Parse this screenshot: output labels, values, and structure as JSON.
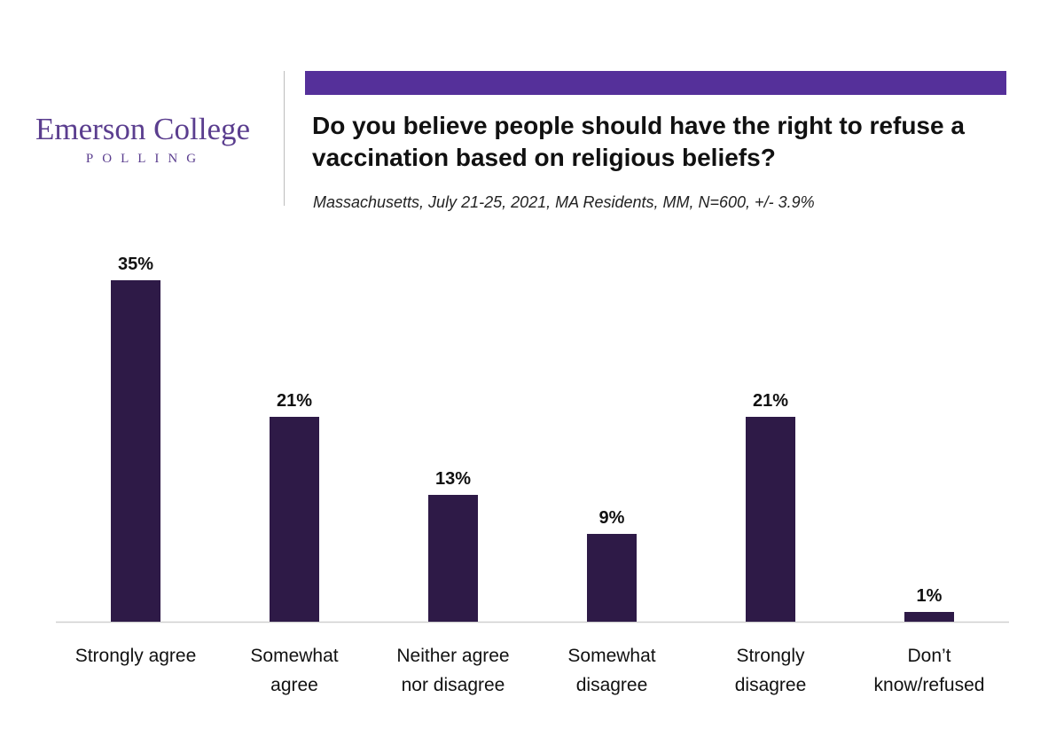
{
  "logo": {
    "name": "Emerson College",
    "sub": "POLLING"
  },
  "colors": {
    "accent": "#55309a",
    "bar": "#2e1a47",
    "axis": "#d0d0d0"
  },
  "chart_data": {
    "type": "bar",
    "title": "Do you believe people should have the right to refuse a vaccination based on religious beliefs?",
    "subtitle": "Massachusetts, July 21-25, 2021, MA Residents, MM, N=600, +/- 3.9%",
    "xlabel": "",
    "ylabel": "",
    "ylim": [
      0,
      35
    ],
    "grid": false,
    "legend": "none",
    "categories": [
      [
        "Strongly agree"
      ],
      [
        "Somewhat",
        "agree"
      ],
      [
        "Neither agree",
        "nor disagree"
      ],
      [
        "Somewhat",
        "disagree"
      ],
      [
        "Strongly",
        "disagree"
      ],
      [
        "Don’t",
        "know/refused"
      ]
    ],
    "values": [
      35,
      21,
      13,
      9,
      21,
      1
    ],
    "value_labels": [
      "35%",
      "21%",
      "13%",
      "9%",
      "21%",
      "1%"
    ]
  }
}
